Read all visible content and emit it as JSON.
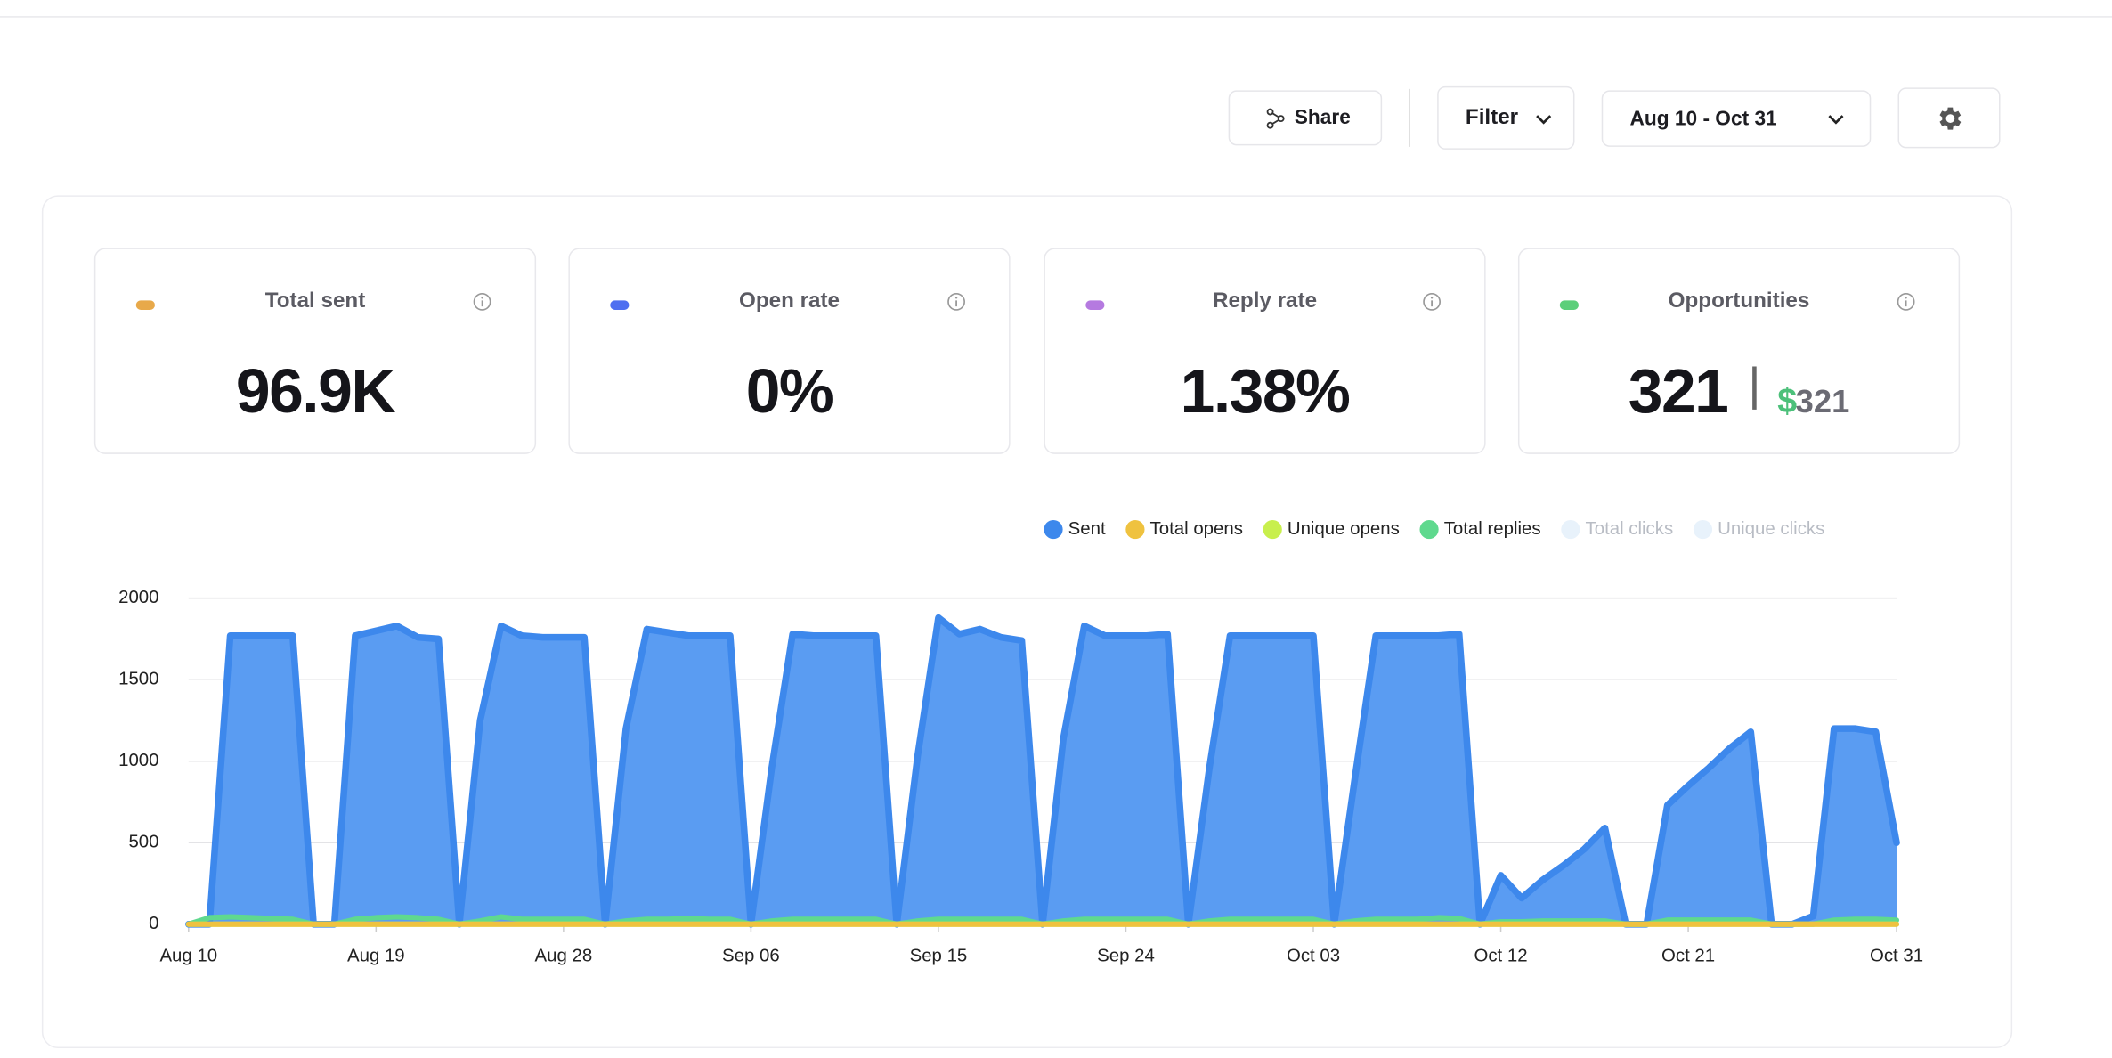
{
  "toolbar": {
    "share": "Share",
    "filter": "Filter",
    "date_range": "Aug 10 - Oct 31"
  },
  "stats": [
    {
      "label": "Total sent",
      "value": "96.9K",
      "color": "#e8a94a"
    },
    {
      "label": "Open rate",
      "value": "0%",
      "color": "#4f6ff0"
    },
    {
      "label": "Reply rate",
      "value": "1.38%",
      "color": "#b57ae0"
    },
    {
      "label": "Opportunities",
      "value": "321",
      "color": "#5ccf7a",
      "currency": "$",
      "amount": "321"
    }
  ],
  "chart_data": {
    "type": "area",
    "categories": [
      "Aug 10",
      null,
      null,
      null,
      null,
      null,
      null,
      null,
      null,
      "Aug 19",
      null,
      null,
      null,
      null,
      null,
      null,
      null,
      null,
      "Aug 28",
      null,
      null,
      null,
      null,
      null,
      null,
      null,
      null,
      "Sep 06",
      null,
      null,
      null,
      null,
      null,
      null,
      null,
      null,
      "Sep 15",
      null,
      null,
      null,
      null,
      null,
      null,
      null,
      null,
      "Sep 24",
      null,
      null,
      null,
      null,
      null,
      null,
      null,
      null,
      "Oct 03",
      null,
      null,
      null,
      null,
      null,
      null,
      null,
      null,
      "Oct 12",
      null,
      null,
      null,
      null,
      null,
      null,
      null,
      null,
      "Oct 21",
      null,
      null,
      null,
      null,
      null,
      null,
      null,
      null,
      null,
      "Oct 31"
    ],
    "ylim": [
      0,
      2000
    ],
    "yticks": [
      0,
      500,
      1000,
      1500,
      2000
    ],
    "grid": true,
    "series": [
      {
        "name": "Sent",
        "color": "#3d88ec",
        "fill": "#5a9cf2",
        "visible": true,
        "values": [
          0,
          0,
          1770,
          1770,
          1770,
          1770,
          0,
          0,
          1770,
          1800,
          1830,
          1760,
          1750,
          0,
          1250,
          1830,
          1770,
          1760,
          1760,
          1760,
          0,
          1200,
          1810,
          1790,
          1770,
          1770,
          1770,
          0,
          960,
          1780,
          1770,
          1770,
          1770,
          1770,
          0,
          1030,
          1880,
          1780,
          1810,
          1760,
          1740,
          0,
          1140,
          1830,
          1770,
          1770,
          1770,
          1780,
          0,
          950,
          1770,
          1770,
          1770,
          1770,
          1770,
          0,
          900,
          1770,
          1770,
          1770,
          1770,
          1780,
          0,
          300,
          160,
          270,
          360,
          460,
          590,
          0,
          0,
          730,
          850,
          960,
          1080,
          1180,
          0,
          0,
          50,
          1200,
          1200,
          1180,
          500
        ]
      },
      {
        "name": "Total opens",
        "color": "#efc23f",
        "visible": true,
        "values": [
          0,
          0,
          0,
          0,
          0,
          0,
          0,
          0,
          0,
          0,
          0,
          0,
          0,
          0,
          0,
          0,
          0,
          0,
          0,
          0,
          0,
          0,
          0,
          0,
          0,
          0,
          0,
          0,
          0,
          0,
          0,
          0,
          0,
          0,
          0,
          0,
          0,
          0,
          0,
          0,
          0,
          0,
          0,
          0,
          0,
          0,
          0,
          0,
          0,
          0,
          0,
          0,
          0,
          0,
          0,
          0,
          0,
          0,
          0,
          0,
          0,
          0,
          0,
          0,
          0,
          0,
          0,
          0,
          0,
          0,
          0,
          0,
          0,
          0,
          0,
          0,
          0,
          0,
          0,
          0,
          0,
          0,
          0
        ]
      },
      {
        "name": "Unique opens",
        "color": "#c8ef4d",
        "visible": true,
        "values": [
          0,
          0,
          0,
          0,
          0,
          0,
          0,
          0,
          0,
          0,
          0,
          0,
          0,
          0,
          0,
          0,
          0,
          0,
          0,
          0,
          0,
          0,
          0,
          0,
          0,
          0,
          0,
          0,
          0,
          0,
          0,
          0,
          0,
          0,
          0,
          0,
          0,
          0,
          0,
          0,
          0,
          0,
          0,
          0,
          0,
          0,
          0,
          0,
          0,
          0,
          0,
          0,
          0,
          0,
          0,
          0,
          0,
          0,
          0,
          0,
          0,
          0,
          0,
          0,
          0,
          0,
          0,
          0,
          0,
          0,
          0,
          0,
          0,
          0,
          0,
          0,
          0,
          0,
          0,
          0,
          0,
          0,
          0
        ]
      },
      {
        "name": "Total replies",
        "color": "#5fd98e",
        "visible": true,
        "values": [
          0,
          40,
          45,
          40,
          35,
          30,
          0,
          0,
          30,
          40,
          45,
          40,
          30,
          0,
          20,
          45,
          30,
          30,
          30,
          30,
          0,
          20,
          30,
          30,
          35,
          30,
          30,
          0,
          20,
          30,
          30,
          30,
          30,
          30,
          0,
          20,
          30,
          30,
          30,
          30,
          30,
          0,
          20,
          30,
          30,
          30,
          30,
          30,
          0,
          20,
          30,
          30,
          30,
          30,
          30,
          0,
          20,
          30,
          30,
          30,
          40,
          35,
          0,
          15,
          15,
          20,
          20,
          20,
          20,
          0,
          0,
          25,
          25,
          25,
          25,
          25,
          0,
          0,
          0,
          25,
          30,
          30,
          25
        ]
      },
      {
        "name": "Total clicks",
        "color": "#e8f2fb",
        "visible": false
      },
      {
        "name": "Unique clicks",
        "color": "#e8f2fb",
        "visible": false
      }
    ]
  }
}
